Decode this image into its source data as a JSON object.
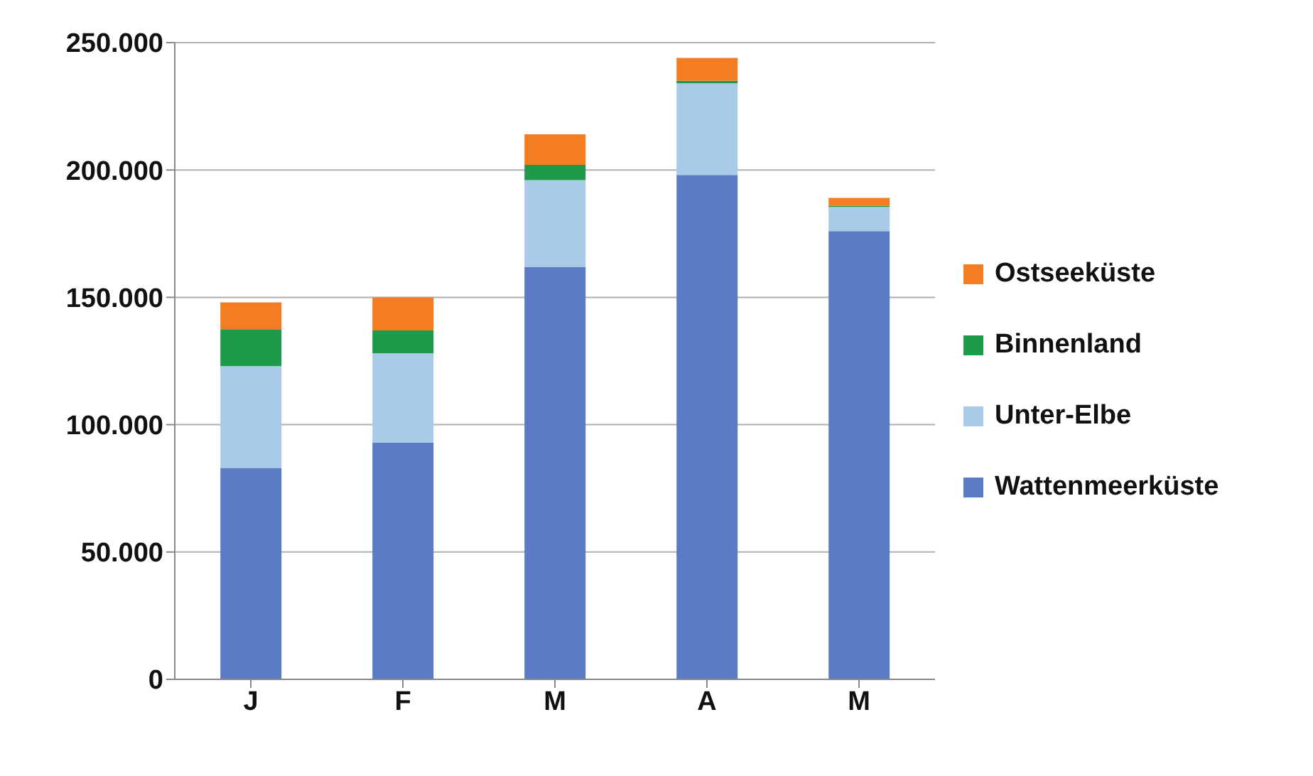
{
  "chart_data": {
    "type": "bar",
    "stacked": true,
    "categories": [
      "J",
      "F",
      "M",
      "A",
      "M"
    ],
    "series": [
      {
        "name": "Wattenmeerküste",
        "color": "#5b7cc4",
        "values": [
          83000,
          93000,
          162000,
          198000,
          176000
        ]
      },
      {
        "name": "Unter-Elbe",
        "color": "#a9cbe8",
        "values": [
          40000,
          35000,
          34000,
          36000,
          9500
        ]
      },
      {
        "name": "Binnenland",
        "color": "#1f9a4a",
        "values": [
          14500,
          9000,
          6000,
          1000,
          500
        ]
      },
      {
        "name": "Ostseeküste",
        "color": "#f47d23",
        "values": [
          10500,
          13000,
          12000,
          9000,
          3000
        ]
      }
    ],
    "ylim": [
      0,
      250000
    ],
    "yticks": [
      0,
      {
        "value": 50000,
        "label": "50.000"
      },
      {
        "value": 100000,
        "label": "100.000"
      },
      {
        "value": 150000,
        "label": "150.000"
      },
      {
        "value": 200000,
        "label": "200.000"
      },
      {
        "value": 250000,
        "label": "250.000"
      }
    ],
    "grid": "y",
    "legend": "right"
  }
}
